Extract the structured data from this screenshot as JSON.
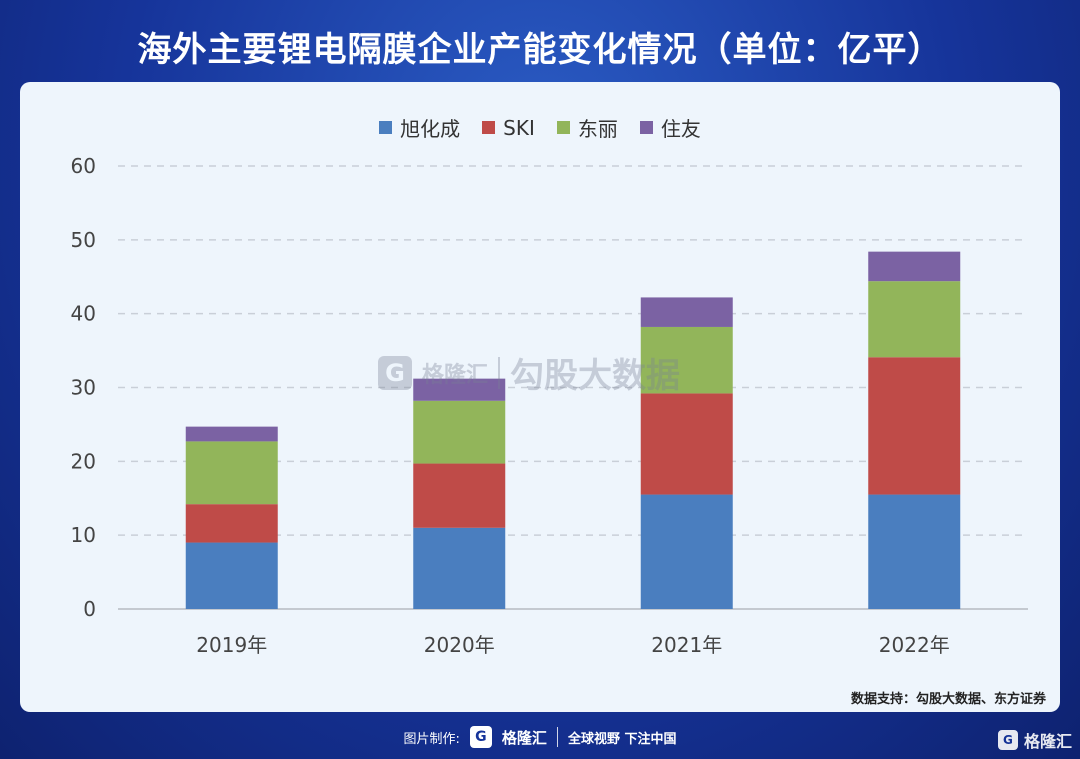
{
  "title": "海外主要锂电隔膜企业产能变化情况（单位：亿平）",
  "source": "数据支持：勾股大数据、东方证券",
  "watermark": {
    "logo_char": "G",
    "brand": "格隆汇",
    "text": "勾股大数据"
  },
  "footer": {
    "label": "图片制作:",
    "logo_char": "G",
    "brand": "格隆汇",
    "slogan": "全球视野 下注中国"
  },
  "corner": {
    "logo_char": "G",
    "brand": "格隆汇"
  },
  "colors": {
    "旭化成": "#4a7ebf",
    "SKI": "#bf4b48",
    "东丽": "#92b55a",
    "住友": "#7b62a3"
  },
  "chart_data": {
    "type": "bar",
    "stacked": true,
    "categories": [
      "2019年",
      "2020年",
      "2021年",
      "2022年"
    ],
    "series": [
      {
        "name": "旭化成",
        "values": [
          9,
          11,
          15.5,
          15.5
        ]
      },
      {
        "name": "SKI",
        "values": [
          5.2,
          8.7,
          13.7,
          18.6
        ]
      },
      {
        "name": "东丽",
        "values": [
          8.5,
          8.5,
          9,
          10.3
        ]
      },
      {
        "name": "住友",
        "values": [
          2,
          3,
          4,
          4
        ]
      }
    ],
    "ylim": [
      0,
      60
    ],
    "yticks": [
      0,
      10,
      20,
      30,
      40,
      50,
      60
    ],
    "grid": true,
    "legend_position": "top"
  }
}
